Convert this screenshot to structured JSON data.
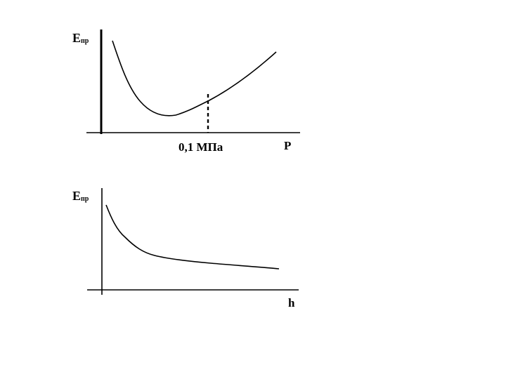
{
  "charts": [
    {
      "y_label_main": "E",
      "y_label_sub": "пр",
      "x_label": "P",
      "marker_label": "0,1 МПа",
      "description_values": {
        "curve_shape": "decreases to a minimum then increases",
        "marker": "dashed vertical line at 0,1 МПа"
      }
    },
    {
      "y_label_main": "E",
      "y_label_sub": "пр",
      "x_label": "h",
      "description_values": {
        "curve_shape": "decreasing, flattening"
      }
    }
  ],
  "colors": {
    "ink": "#000000",
    "background": "#ffffff"
  }
}
